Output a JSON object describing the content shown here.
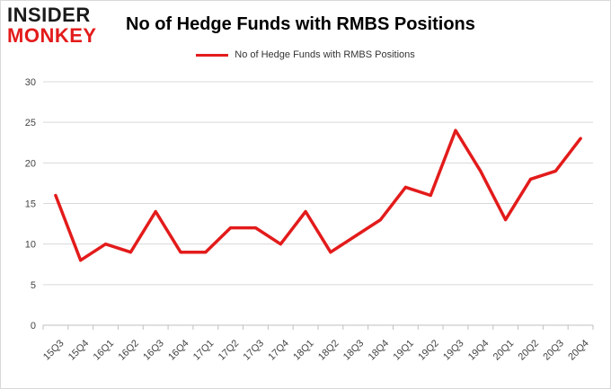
{
  "logo": {
    "line1": "INSIDER",
    "line2": "MONKEY"
  },
  "colors": {
    "series": "#e31b1b",
    "grid": "#d9d9d9",
    "axis": "#bfbfbf"
  },
  "chart_data": {
    "type": "line",
    "title": "No of Hedge Funds with RMBS Positions",
    "xlabel": "",
    "ylabel": "",
    "legend_position": "top-center",
    "grid": true,
    "ylim": [
      0,
      30
    ],
    "yticks": [
      0,
      5,
      10,
      15,
      20,
      25,
      30
    ],
    "categories": [
      "15Q3",
      "15Q4",
      "16Q1",
      "16Q2",
      "16Q3",
      "16Q4",
      "17Q1",
      "17Q2",
      "17Q3",
      "17Q4",
      "18Q1",
      "18Q2",
      "18Q3",
      "18Q4",
      "19Q1",
      "19Q2",
      "19Q3",
      "19Q4",
      "20Q1",
      "20Q2",
      "20Q3",
      "20Q4"
    ],
    "series": [
      {
        "name": "No of Hedge Funds with RMBS Positions",
        "color": "#e31b1b",
        "values": [
          16,
          8,
          10,
          9,
          14,
          9,
          9,
          12,
          12,
          10,
          14,
          9,
          11,
          13,
          17,
          16,
          24,
          19,
          13,
          18,
          19,
          23
        ]
      }
    ]
  }
}
